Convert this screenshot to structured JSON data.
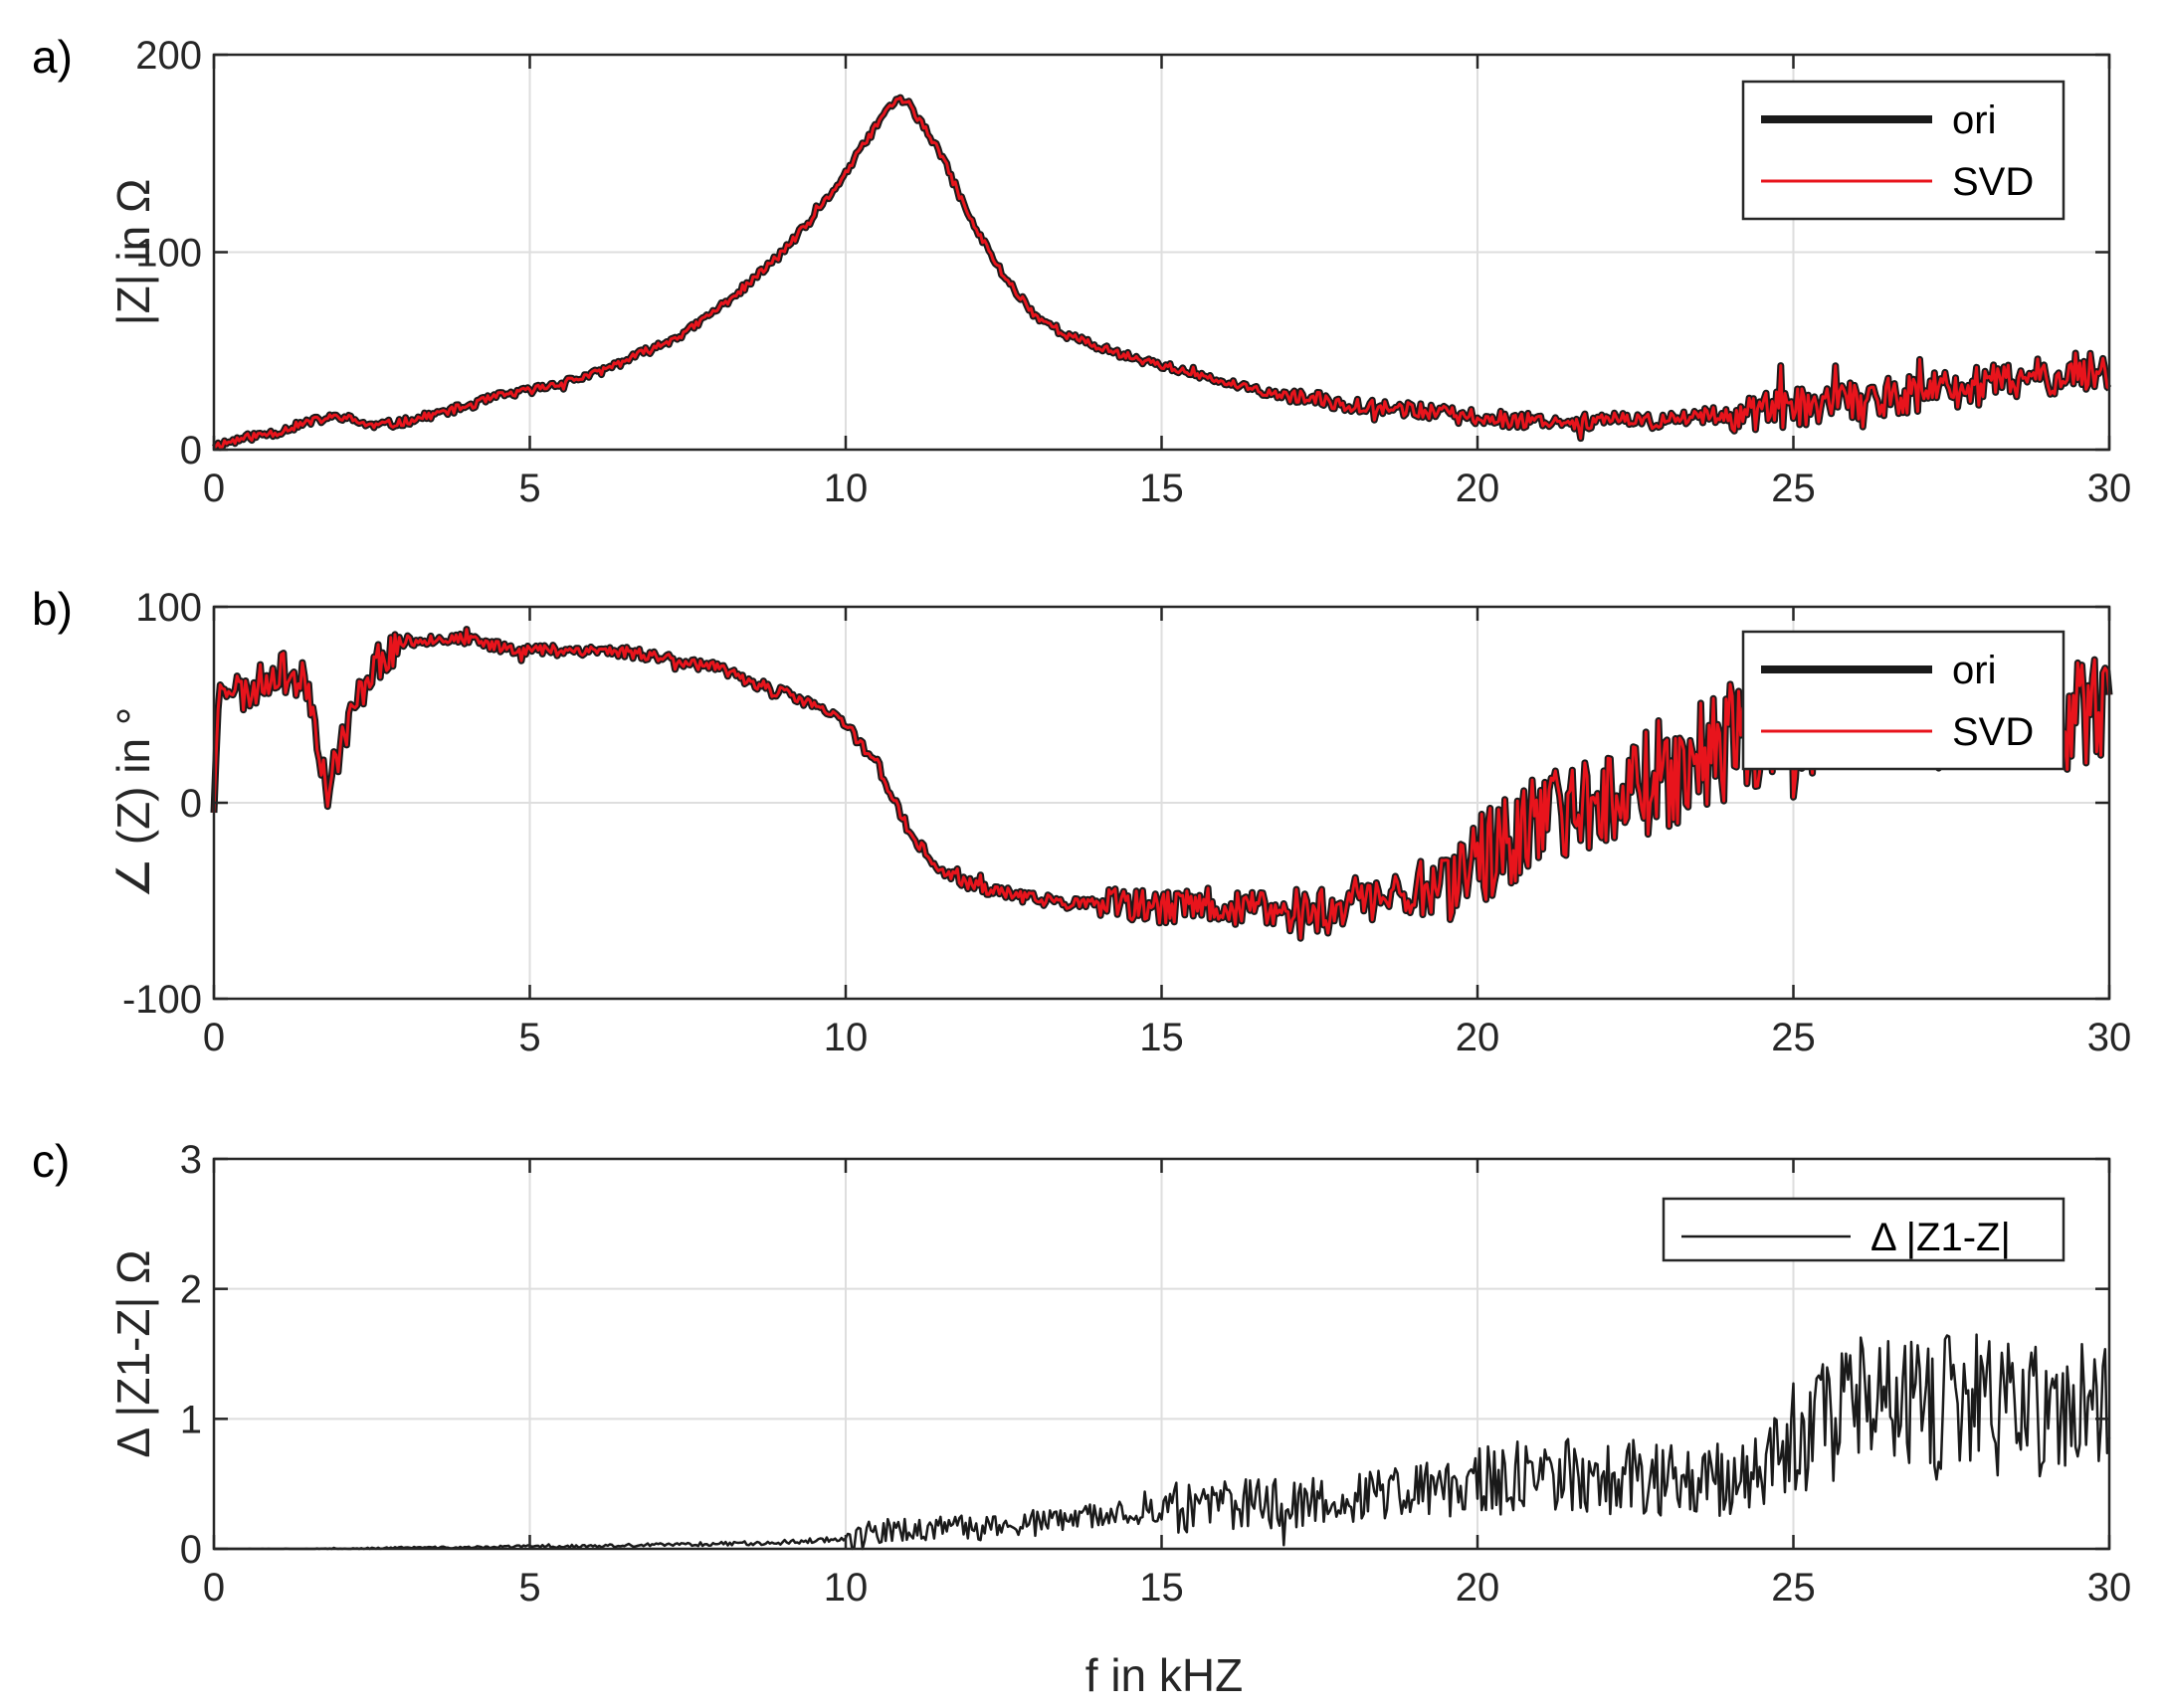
{
  "figure": {
    "xlabel": "f in kHZ",
    "colors": {
      "ori": "#1a1a1a",
      "svd": "#e8141c",
      "delta": "#1a1a1a",
      "axis": "#262626",
      "grid": "#dedede"
    }
  },
  "chart_data": [
    {
      "panel_label": "a)",
      "type": "line",
      "xlabel": "",
      "ylabel": "|Z| in Ω",
      "xlim": [
        0,
        30
      ],
      "ylim": [
        0,
        200
      ],
      "xticks": [
        0,
        5,
        10,
        15,
        20,
        25,
        30
      ],
      "xtick_labels": [
        "0",
        "5",
        "10",
        "15",
        "20",
        "25",
        "30"
      ],
      "yticks": [
        0,
        100,
        200
      ],
      "ytick_labels": [
        "0",
        "100",
        "200"
      ],
      "grid": true,
      "legend": {
        "position": "top-right",
        "entries": [
          "ori",
          "SVD"
        ]
      },
      "series": [
        {
          "name": "ori",
          "x": [
            0,
            0.5,
            1,
            1.5,
            2,
            2.5,
            3,
            3.5,
            4,
            4.5,
            5,
            5.5,
            6,
            6.5,
            7,
            7.5,
            8,
            8.5,
            9,
            9.5,
            10,
            10.5,
            10.8,
            11,
            11.5,
            12,
            12.5,
            13,
            13.5,
            14,
            14.5,
            15,
            15.5,
            16,
            16.5,
            17,
            17.5,
            18,
            18.5,
            19,
            19.5,
            20,
            20.5,
            21,
            21.5,
            22,
            22.5,
            23,
            23.5,
            24,
            24.5,
            25,
            25.5,
            26,
            26.5,
            27,
            27.5,
            28,
            28.5,
            29,
            29.5,
            30
          ],
          "y": [
            2,
            6,
            9,
            14,
            17,
            12,
            14,
            18,
            22,
            27,
            30,
            34,
            38,
            45,
            52,
            60,
            72,
            85,
            100,
            118,
            140,
            165,
            178,
            175,
            150,
            115,
            88,
            68,
            58,
            52,
            47,
            43,
            38,
            34,
            30,
            27,
            25,
            23,
            22,
            20,
            18,
            16,
            15,
            15,
            14,
            15,
            14,
            15,
            17,
            18,
            20,
            21,
            23,
            25,
            27,
            28,
            30,
            32,
            35,
            37,
            39,
            40
          ]
        },
        {
          "name": "SVD",
          "x": [
            0,
            0.5,
            1,
            1.5,
            2,
            2.5,
            3,
            3.5,
            4,
            4.5,
            5,
            5.5,
            6,
            6.5,
            7,
            7.5,
            8,
            8.5,
            9,
            9.5,
            10,
            10.5,
            10.8,
            11,
            11.5,
            12,
            12.5,
            13,
            13.5,
            14,
            14.5,
            15,
            15.5,
            16,
            16.5,
            17,
            17.5,
            18,
            18.5,
            19,
            19.5,
            20,
            20.5,
            21,
            21.5,
            22,
            22.5,
            23,
            23.5,
            24,
            24.5,
            25,
            25.5,
            26,
            26.5,
            27,
            27.5,
            28,
            28.5,
            29,
            29.5,
            30
          ],
          "y": [
            2,
            6,
            9,
            14,
            17,
            12,
            14,
            18,
            22,
            27,
            30,
            34,
            38,
            45,
            52,
            60,
            72,
            85,
            100,
            118,
            140,
            165,
            178,
            175,
            150,
            115,
            88,
            68,
            58,
            52,
            47,
            43,
            38,
            34,
            30,
            27,
            25,
            23,
            22,
            20,
            18,
            16,
            15,
            15,
            14,
            15,
            14,
            15,
            17,
            18,
            20,
            21,
            23,
            25,
            27,
            28,
            30,
            32,
            35,
            37,
            39,
            40
          ]
        }
      ]
    },
    {
      "panel_label": "b)",
      "type": "line",
      "xlabel": "",
      "ylabel": "∠ (Z) in °",
      "xlim": [
        0,
        30
      ],
      "ylim": [
        -100,
        100
      ],
      "xticks": [
        0,
        5,
        10,
        15,
        20,
        25,
        30
      ],
      "xtick_labels": [
        "0",
        "5",
        "10",
        "15",
        "20",
        "25",
        "30"
      ],
      "yticks": [
        -100,
        0,
        100
      ],
      "ytick_labels": [
        "-100",
        "0",
        "100"
      ],
      "grid": true,
      "legend": {
        "position": "top-right",
        "entries": [
          "ori",
          "SVD"
        ]
      },
      "series": [
        {
          "name": "ori",
          "x": [
            0,
            0.1,
            0.5,
            1,
            1.5,
            1.8,
            2,
            2.5,
            3,
            3.5,
            4,
            4.5,
            5,
            5.5,
            6,
            6.5,
            7,
            7.5,
            8,
            8.5,
            9,
            9.5,
            10,
            10.5,
            11,
            11.5,
            12,
            12.5,
            13,
            13.5,
            14,
            14.5,
            15,
            15.5,
            16,
            16.5,
            17,
            17.5,
            18,
            18.5,
            19,
            19.5,
            20,
            20.5,
            21,
            21.5,
            22,
            22.5,
            23,
            23.5,
            24,
            24.5,
            25,
            25.5,
            26,
            26.5,
            27,
            27.5,
            28,
            28.5,
            29,
            29.5,
            30
          ],
          "y": [
            0,
            65,
            55,
            68,
            60,
            5,
            30,
            70,
            82,
            84,
            83,
            80,
            78,
            78,
            78,
            77,
            75,
            72,
            68,
            62,
            56,
            50,
            40,
            20,
            -15,
            -35,
            -42,
            -46,
            -49,
            -51,
            -52,
            -53,
            -54,
            -52,
            -53,
            -54,
            -56,
            -55,
            -50,
            -48,
            -45,
            -38,
            -28,
            -20,
            -10,
            -3,
            5,
            10,
            15,
            22,
            30,
            35,
            40,
            42,
            44,
            46,
            45,
            46,
            47,
            46,
            45,
            45,
            44
          ]
        },
        {
          "name": "SVD",
          "x": [
            0,
            0.1,
            0.5,
            1,
            1.5,
            1.8,
            2,
            2.5,
            3,
            3.5,
            4,
            4.5,
            5,
            5.5,
            6,
            6.5,
            7,
            7.5,
            8,
            8.5,
            9,
            9.5,
            10,
            10.5,
            11,
            11.5,
            12,
            12.5,
            13,
            13.5,
            14,
            14.5,
            15,
            15.5,
            16,
            16.5,
            17,
            17.5,
            18,
            18.5,
            19,
            19.5,
            20,
            20.5,
            21,
            21.5,
            22,
            22.5,
            23,
            23.5,
            24,
            24.5,
            25,
            25.5,
            26,
            26.5,
            27,
            27.5,
            28,
            28.5,
            29,
            29.5,
            30
          ],
          "y": [
            0,
            65,
            55,
            68,
            60,
            5,
            30,
            70,
            82,
            84,
            83,
            80,
            78,
            78,
            78,
            77,
            75,
            72,
            68,
            62,
            56,
            50,
            40,
            20,
            -15,
            -35,
            -42,
            -46,
            -49,
            -51,
            -52,
            -53,
            -54,
            -52,
            -53,
            -54,
            -56,
            -55,
            -50,
            -48,
            -45,
            -38,
            -28,
            -20,
            -10,
            -3,
            5,
            10,
            15,
            22,
            30,
            35,
            40,
            42,
            44,
            46,
            45,
            46,
            47,
            46,
            45,
            45,
            44
          ]
        }
      ]
    },
    {
      "panel_label": "c)",
      "type": "line",
      "xlabel": "f in kHZ",
      "ylabel": "Δ |Z1-Z| Ω",
      "xlim": [
        0,
        30
      ],
      "ylim": [
        0,
        3
      ],
      "xticks": [
        0,
        5,
        10,
        15,
        20,
        25,
        30
      ],
      "xtick_labels": [
        "0",
        "5",
        "10",
        "15",
        "20",
        "25",
        "30"
      ],
      "yticks": [
        0,
        1,
        2,
        3
      ],
      "ytick_labels": [
        "0",
        "1",
        "2",
        "3"
      ],
      "grid": true,
      "legend": {
        "position": "top-right",
        "entries": [
          "Δ  |Z1-Z|"
        ]
      },
      "series": [
        {
          "name": "Δ  |Z1-Z|",
          "x": [
            0,
            1,
            2,
            3,
            4,
            5,
            6,
            7,
            8,
            9,
            10,
            10.5,
            11,
            11.5,
            12,
            12.5,
            13,
            13.5,
            14,
            14.5,
            15,
            15.5,
            16,
            16.5,
            17,
            17.5,
            18,
            18.5,
            19,
            19.5,
            20,
            20.5,
            21,
            21.5,
            22,
            22.5,
            23,
            23.5,
            24,
            24.5,
            25,
            25.5,
            26,
            26.5,
            27,
            27.5,
            28,
            28.5,
            29,
            29.5,
            30
          ],
          "y": [
            0,
            0,
            0,
            0.01,
            0.01,
            0.02,
            0.02,
            0.03,
            0.04,
            0.05,
            0.08,
            0.12,
            0.15,
            0.15,
            0.16,
            0.18,
            0.2,
            0.22,
            0.25,
            0.28,
            0.3,
            0.32,
            0.33,
            0.35,
            0.35,
            0.37,
            0.4,
            0.42,
            0.45,
            0.48,
            0.5,
            0.52,
            0.55,
            0.55,
            0.57,
            0.55,
            0.55,
            0.55,
            0.55,
            0.6,
            0.9,
            1.0,
            1.1,
            1.1,
            1.05,
            1.1,
            1.1,
            1.05,
            1.1,
            1.05,
            1.1
          ]
        }
      ]
    }
  ]
}
